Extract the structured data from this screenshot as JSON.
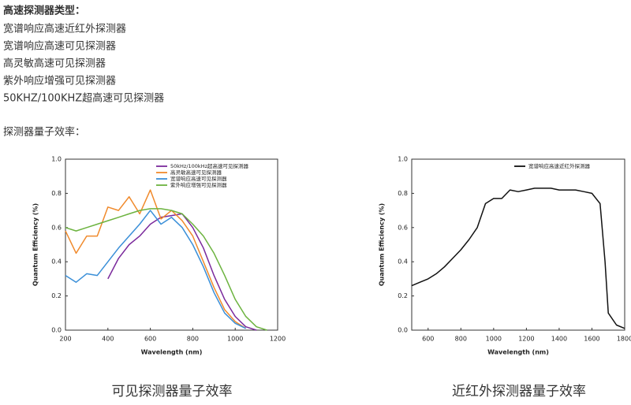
{
  "text": {
    "heading": "高速探测器类型：",
    "items": [
      "宽谱响应高速近红外探测器",
      "宽谱响应高速可见探测器",
      "高灵敏高速可见探测器",
      "紫外响应增强可见探测器",
      "50KHZ/100KHZ超高速可见探测器"
    ],
    "subheading": "探测器量子效率："
  },
  "chart_data": [
    {
      "type": "line",
      "caption": "可见探测器量子效率",
      "xlabel": "Wavelength (nm)",
      "ylabel": "Quantum Efficiency (%)",
      "x": [
        200,
        250,
        300,
        350,
        400,
        450,
        500,
        550,
        600,
        650,
        700,
        750,
        800,
        850,
        900,
        950,
        1000,
        1050,
        1100,
        1150
      ],
      "series": [
        {
          "name": "50kHz/100kHz超高速可见探测器",
          "color": "#7b2a9c",
          "values": [
            null,
            null,
            null,
            null,
            0.3,
            0.42,
            0.5,
            0.55,
            0.62,
            0.66,
            0.67,
            0.68,
            0.6,
            0.48,
            0.32,
            0.18,
            0.08,
            0.02,
            0.0,
            null
          ]
        },
        {
          "name": "高灵敏高速可见探测器",
          "color": "#f08a2c",
          "values": [
            0.58,
            0.45,
            0.55,
            0.55,
            0.72,
            0.7,
            0.78,
            0.68,
            0.82,
            0.65,
            0.7,
            0.64,
            0.55,
            0.4,
            0.25,
            0.12,
            0.05,
            0.01,
            null,
            null
          ]
        },
        {
          "name": "宽谱响应高速可见探测器",
          "color": "#3a8fd8",
          "values": [
            0.32,
            0.28,
            0.33,
            0.32,
            0.4,
            0.48,
            0.55,
            0.62,
            0.7,
            0.62,
            0.66,
            0.6,
            0.5,
            0.37,
            0.22,
            0.1,
            0.04,
            0.01,
            null,
            null
          ]
        },
        {
          "name": "紫外响应增强可见探测器",
          "color": "#6cb33f",
          "values": [
            0.6,
            0.58,
            0.6,
            0.62,
            0.64,
            0.66,
            0.68,
            0.7,
            0.71,
            0.71,
            0.7,
            0.68,
            0.62,
            0.55,
            0.45,
            0.32,
            0.18,
            0.08,
            0.02,
            0.0
          ]
        }
      ],
      "xlim": [
        200,
        1200
      ],
      "xticks": [
        200,
        400,
        600,
        800,
        1000,
        1200
      ],
      "ylim": [
        0,
        1
      ],
      "yticks": [
        {
          "value": 0,
          "label": "0.0"
        },
        0.2,
        0.4,
        0.6,
        0.8,
        {
          "value": 1,
          "label": "1.0"
        }
      ]
    },
    {
      "type": "line",
      "caption": "近红外探测器量子效率",
      "xlabel": "Wavelength (nm)",
      "ylabel": "Quantum Efficiency (%)",
      "x": [
        500,
        550,
        600,
        650,
        700,
        750,
        800,
        850,
        900,
        950,
        1000,
        1050,
        1100,
        1150,
        1200,
        1250,
        1300,
        1350,
        1400,
        1450,
        1500,
        1550,
        1600,
        1650,
        1680,
        1700,
        1750,
        1800
      ],
      "series": [
        {
          "name": "宽谱响应高速近红外探测器",
          "color": "#111111",
          "values": [
            0.26,
            0.28,
            0.3,
            0.33,
            0.37,
            0.42,
            0.47,
            0.53,
            0.6,
            0.74,
            0.77,
            0.77,
            0.82,
            0.81,
            0.82,
            0.83,
            0.83,
            0.83,
            0.82,
            0.82,
            0.82,
            0.81,
            0.8,
            0.74,
            0.4,
            0.1,
            0.03,
            0.01
          ]
        }
      ],
      "xlim": [
        500,
        1800
      ],
      "xticks": [
        600,
        800,
        1000,
        1200,
        1400,
        1600,
        1800
      ],
      "ylim": [
        0,
        1
      ],
      "yticks": [
        {
          "value": 0,
          "label": "0.0"
        },
        0.2,
        0.4,
        0.6,
        0.8,
        {
          "value": 1,
          "label": "1.0"
        }
      ]
    }
  ]
}
